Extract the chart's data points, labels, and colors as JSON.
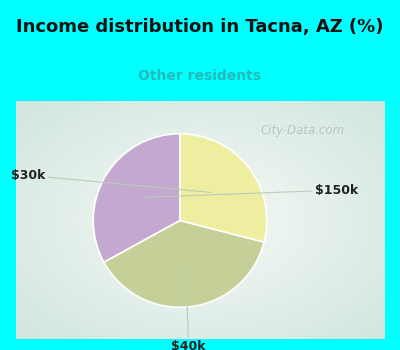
{
  "title": "Income distribution in Tacna, AZ (%)",
  "subtitle": "Other residents",
  "subtitle_color": "#22BBBB",
  "title_color": "#111111",
  "background_cyan": "#00FFFF",
  "chart_bg_center": "#F0F8F0",
  "chart_bg_edge": "#B8D8C0",
  "slices": [
    {
      "label": "$150k",
      "value": 33,
      "color": "#C5A8D0"
    },
    {
      "label": "$40k",
      "value": 38,
      "color": "#C5D098"
    },
    {
      "label": "$30k",
      "value": 29,
      "color": "#EEEEA0"
    }
  ],
  "startangle": 90,
  "watermark": "City-Data.com",
  "watermark_color": "#AABBBB",
  "label_font_size": 9,
  "title_font_size": 13,
  "subtitle_font_size": 10
}
